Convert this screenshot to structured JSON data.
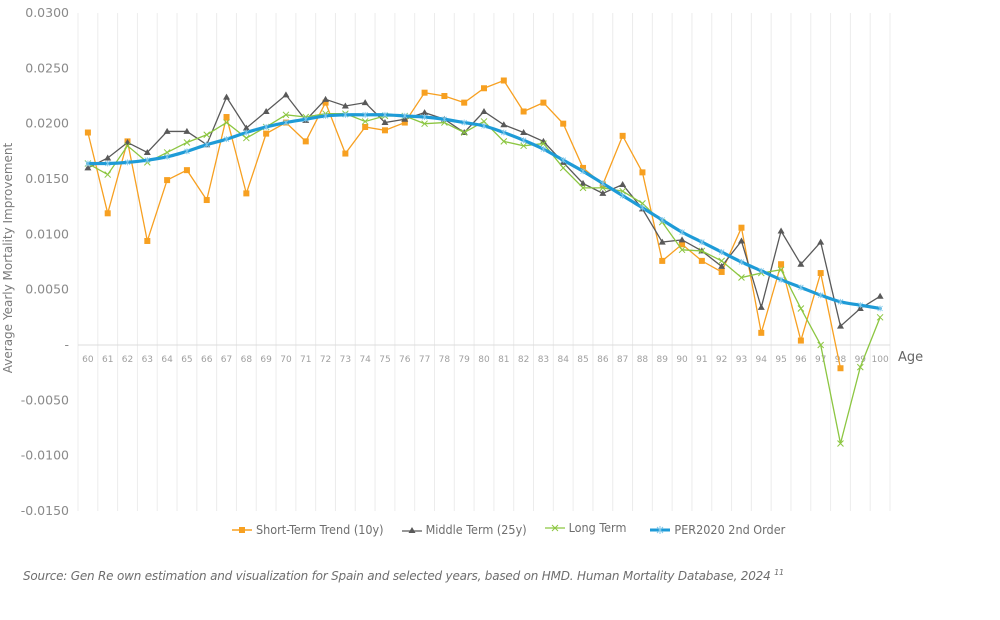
{
  "chart_data": {
    "type": "line",
    "title": "",
    "xlabel": "Age",
    "ylabel": "Average Yearly Mortality Improvement",
    "ylim": [
      -0.015,
      0.03
    ],
    "yticks": [
      0.03,
      0.025,
      0.02,
      0.015,
      0.01,
      0.005,
      0,
      -0.005,
      -0.01,
      -0.015
    ],
    "ytick_labels": [
      "0.0300",
      "0.0250",
      "0.0200",
      "0.0150",
      "0.0100",
      "0.0050",
      "-",
      "-0.0050",
      "-0.0100",
      "-0.0150"
    ],
    "x": [
      60,
      61,
      62,
      63,
      64,
      65,
      66,
      67,
      68,
      69,
      70,
      71,
      72,
      73,
      74,
      75,
      76,
      77,
      78,
      79,
      80,
      81,
      82,
      83,
      84,
      85,
      86,
      87,
      88,
      89,
      90,
      91,
      92,
      93,
      94,
      95,
      96,
      97,
      98,
      99,
      100
    ],
    "grid": "vertical",
    "legend_position": "bottom",
    "series": [
      {
        "name": "Short-Term Trend (10y)",
        "color": "#f7a021",
        "marker": "square",
        "values": [
          0.0192,
          0.0119,
          0.0184,
          0.0094,
          0.0149,
          0.0158,
          0.0131,
          0.0206,
          0.0137,
          0.0191,
          0.0201,
          0.0184,
          0.0219,
          0.0173,
          0.0197,
          0.0194,
          0.0201,
          0.0228,
          0.0225,
          0.0219,
          0.0232,
          0.0239,
          0.0211,
          0.0219,
          0.02,
          0.016,
          0.0145,
          0.0189,
          0.0156,
          0.0076,
          0.0091,
          0.0076,
          0.0066,
          0.0106,
          0.0011,
          0.0073,
          0.0004,
          0.0065,
          -0.0021,
          null,
          null
        ]
      },
      {
        "name": "Middle Term (25y)",
        "color": "#595959",
        "marker": "triangle",
        "values": [
          0.016,
          0.0169,
          0.0183,
          0.0174,
          0.0193,
          0.0193,
          0.0181,
          0.0224,
          0.0196,
          0.0211,
          0.0226,
          0.0203,
          0.0222,
          0.0216,
          0.0219,
          0.0201,
          0.0204,
          0.021,
          0.0204,
          0.0192,
          0.0211,
          0.0199,
          0.0192,
          0.0184,
          0.0165,
          0.0146,
          0.0137,
          0.0145,
          0.0123,
          0.0093,
          0.0095,
          0.0085,
          0.0071,
          0.0094,
          0.0034,
          0.0103,
          0.0073,
          0.0093,
          0.0017,
          0.0033,
          0.0044
        ]
      },
      {
        "name": "Long Term",
        "color": "#8cc641",
        "marker": "x",
        "values": [
          0.0164,
          0.0154,
          0.018,
          0.0165,
          0.0174,
          0.0183,
          0.019,
          0.0201,
          0.0187,
          0.0197,
          0.0208,
          0.0206,
          0.0209,
          0.0209,
          0.0202,
          0.0207,
          0.0207,
          0.02,
          0.0201,
          0.0192,
          0.0202,
          0.0184,
          0.018,
          0.0182,
          0.016,
          0.0142,
          0.0142,
          0.0139,
          0.0128,
          0.0111,
          0.0086,
          0.0085,
          0.0076,
          0.0061,
          0.0065,
          0.0068,
          0.0033,
          0.0,
          -0.0089,
          -0.002,
          0.0025
        ]
      },
      {
        "name": "PER2020 2nd Order",
        "color": "#1e9bd7",
        "marker": "star",
        "values": [
          0.0164,
          0.0164,
          0.0165,
          0.0167,
          0.017,
          0.0175,
          0.0181,
          0.0186,
          0.0192,
          0.0197,
          0.0201,
          0.0204,
          0.0207,
          0.0208,
          0.0208,
          0.0208,
          0.0207,
          0.0206,
          0.0204,
          0.0201,
          0.0198,
          0.0192,
          0.0185,
          0.0177,
          0.0167,
          0.0157,
          0.0146,
          0.0135,
          0.0124,
          0.0113,
          0.0102,
          0.0093,
          0.0084,
          0.0075,
          0.0067,
          0.0059,
          0.0052,
          0.0045,
          0.0039,
          0.0036,
          0.0033
        ]
      }
    ]
  },
  "source_note": "Source: Gen Re own estimation and visualization for Spain and selected years, based on HMD. Human Mortality Database, 2024",
  "source_ref": "11"
}
